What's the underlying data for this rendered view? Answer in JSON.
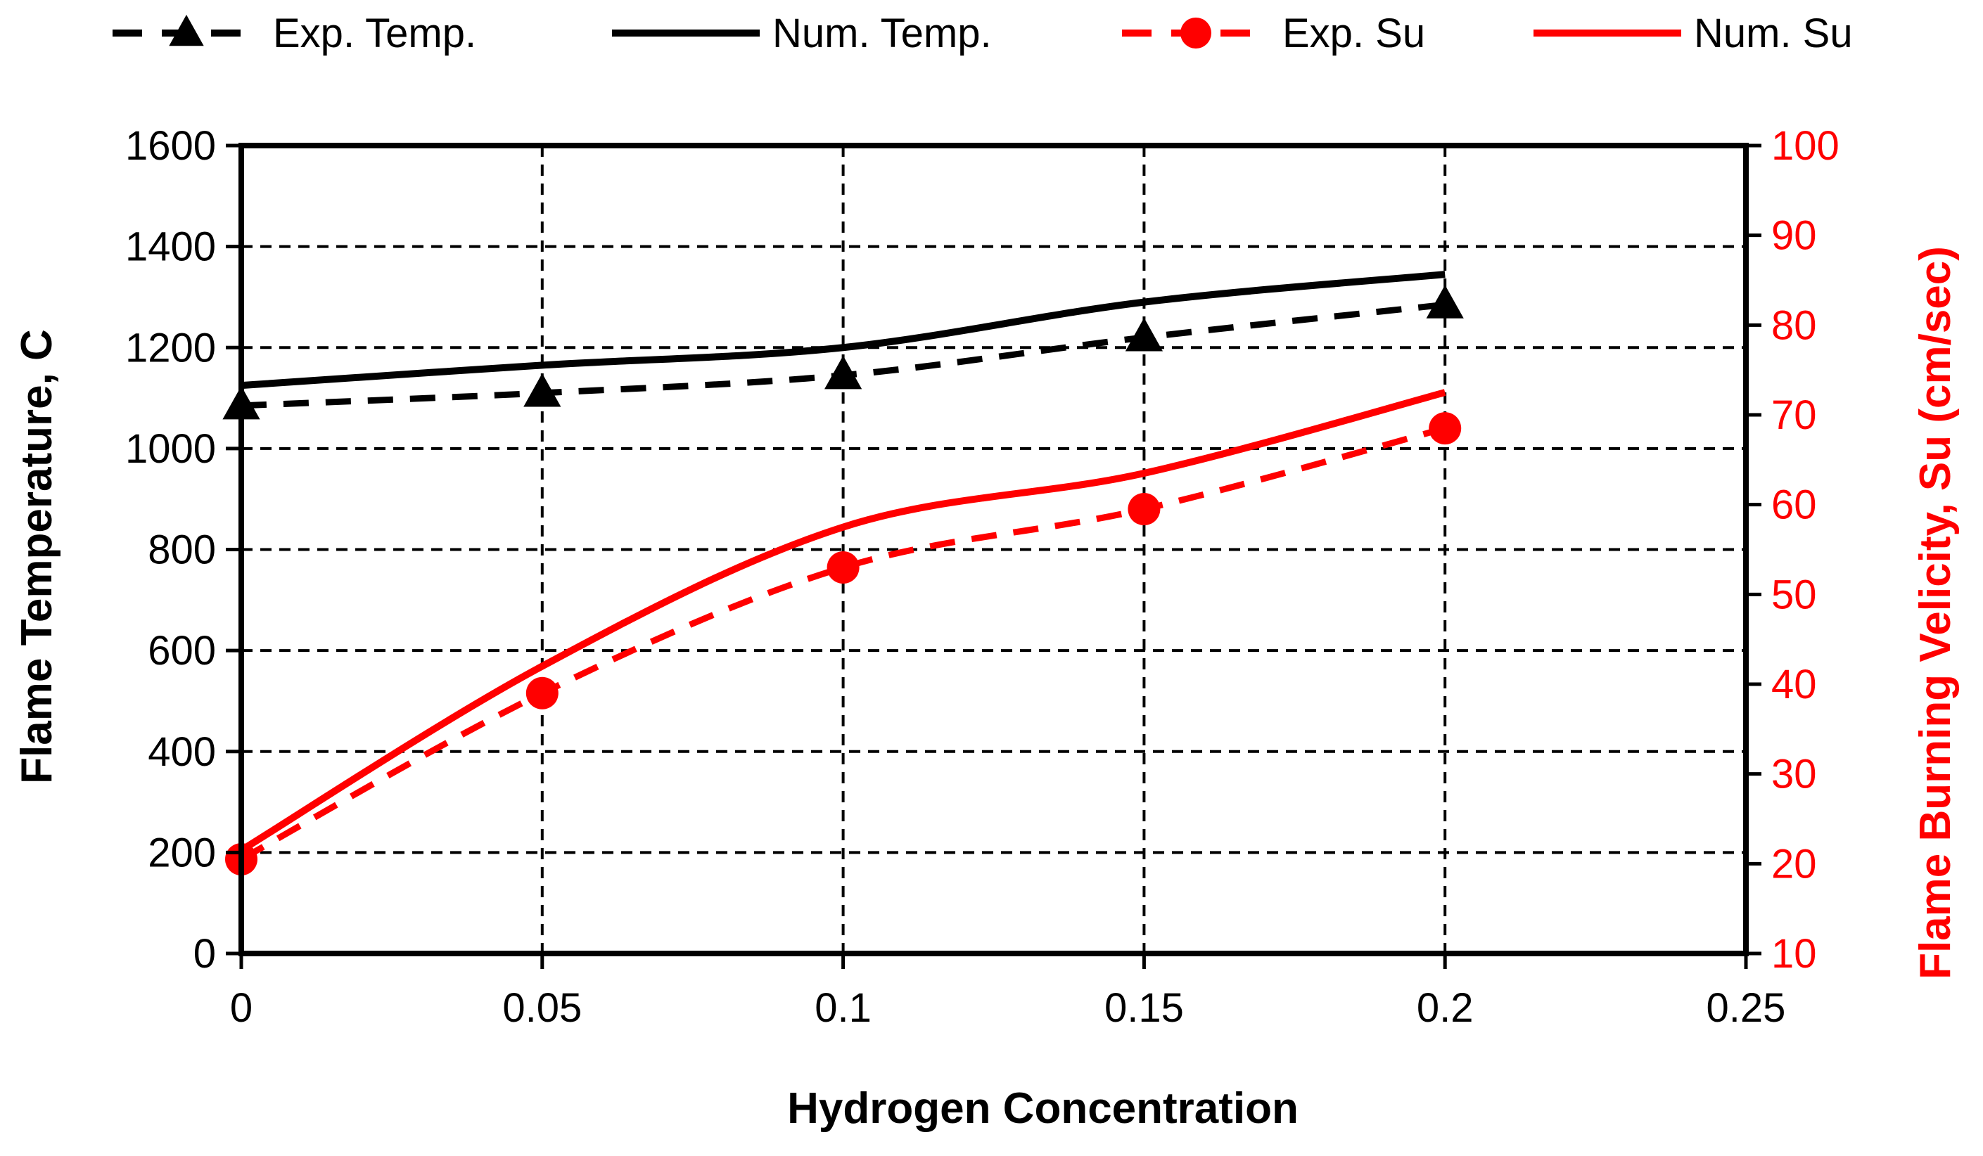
{
  "chart_data": {
    "type": "line",
    "xlabel": "Hydrogen Concentration",
    "ylabel": "Flame Temperature,  C",
    "y2label": "Flame Burning Velicity, Su (cm/sec)",
    "xlim": [
      0,
      0.25
    ],
    "ylim": [
      0,
      1600
    ],
    "y2lim": [
      10,
      100
    ],
    "grid": true,
    "legend_position": "top",
    "x_ticks": [
      "0",
      "0.05",
      "0.1",
      "0.15",
      "0.2",
      "0.25"
    ],
    "y_ticks": [
      "0",
      "200",
      "400",
      "600",
      "800",
      "1000",
      "1200",
      "1400",
      "1600"
    ],
    "y2_ticks": [
      "10",
      "20",
      "30",
      "40",
      "50",
      "60",
      "70",
      "80",
      "90",
      "100"
    ],
    "series": [
      {
        "name": "Exp. Temp.",
        "axis": "left",
        "color": "#000000",
        "style": "dashed",
        "marker": "triangle",
        "x": [
          0,
          0.05,
          0.1,
          0.15,
          0.2
        ],
        "values": [
          1085,
          1110,
          1145,
          1220,
          1285
        ]
      },
      {
        "name": "Num. Temp.",
        "axis": "left",
        "color": "#000000",
        "style": "solid",
        "marker": "none",
        "x": [
          0,
          0.05,
          0.1,
          0.15,
          0.2
        ],
        "values": [
          1125,
          1165,
          1200,
          1290,
          1345
        ]
      },
      {
        "name": "Exp. Su",
        "axis": "right",
        "color": "#ff0000",
        "style": "dashed",
        "marker": "circle",
        "x": [
          0,
          0.05,
          0.1,
          0.15,
          0.2
        ],
        "values": [
          20.5,
          39,
          53,
          59.5,
          68.5
        ]
      },
      {
        "name": "Num. Su",
        "axis": "right",
        "color": "#ff0000",
        "style": "solid",
        "marker": "none",
        "x": [
          0,
          0.05,
          0.1,
          0.15,
          0.2
        ],
        "values": [
          21.5,
          42,
          57.5,
          63.5,
          72.5
        ]
      }
    ]
  }
}
